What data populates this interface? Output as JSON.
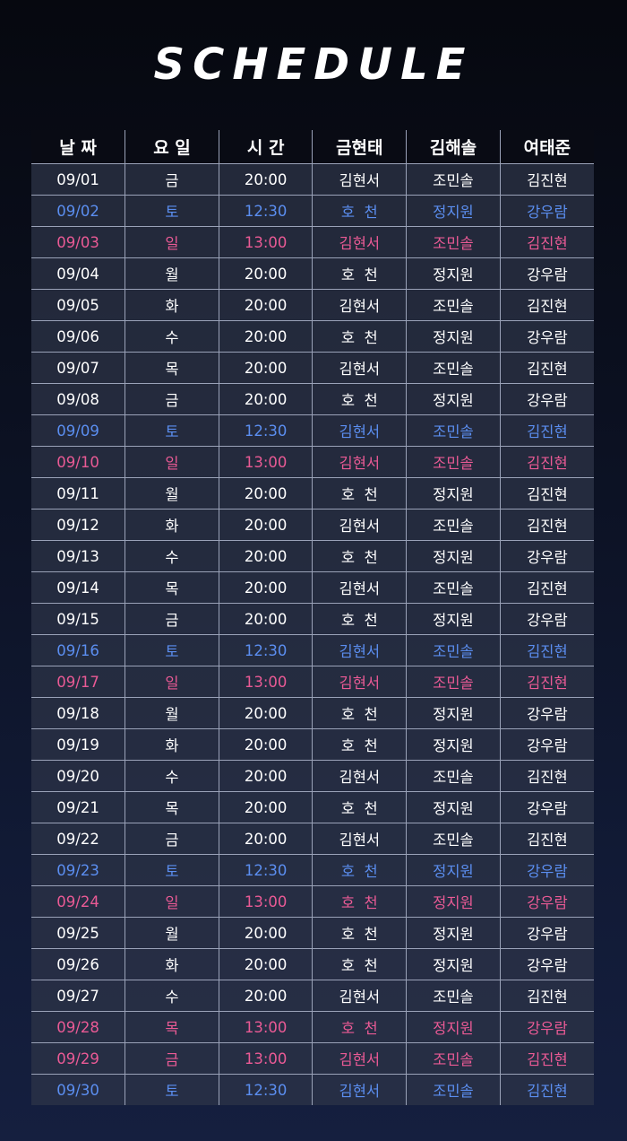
{
  "title": "SCHEDULE",
  "colors": {
    "weekday": "#ffffff",
    "saturday": "#5b8ef0",
    "sunday_holiday": "#ea5a95",
    "header_bg": "#090b14"
  },
  "table": {
    "headers": [
      "날 짜",
      "요 일",
      "시 간",
      "금현태",
      "김해솔",
      "여태준"
    ],
    "rows": [
      {
        "type": "weekday",
        "cells": [
          "09/01",
          "금",
          "20:00",
          "김현서",
          "조민솔",
          "김진현"
        ]
      },
      {
        "type": "sat",
        "cells": [
          "09/02",
          "토",
          "12:30",
          "호  천",
          "정지원",
          "강우람"
        ]
      },
      {
        "type": "sun",
        "cells": [
          "09/03",
          "일",
          "13:00",
          "김현서",
          "조민솔",
          "김진현"
        ]
      },
      {
        "type": "weekday",
        "cells": [
          "09/04",
          "월",
          "20:00",
          "호  천",
          "정지원",
          "강우람"
        ]
      },
      {
        "type": "weekday",
        "cells": [
          "09/05",
          "화",
          "20:00",
          "김현서",
          "조민솔",
          "김진현"
        ]
      },
      {
        "type": "weekday",
        "cells": [
          "09/06",
          "수",
          "20:00",
          "호  천",
          "정지원",
          "강우람"
        ]
      },
      {
        "type": "weekday",
        "cells": [
          "09/07",
          "목",
          "20:00",
          "김현서",
          "조민솔",
          "김진현"
        ]
      },
      {
        "type": "weekday",
        "cells": [
          "09/08",
          "금",
          "20:00",
          "호  천",
          "정지원",
          "강우람"
        ]
      },
      {
        "type": "sat",
        "cells": [
          "09/09",
          "토",
          "12:30",
          "김현서",
          "조민솔",
          "김진현"
        ]
      },
      {
        "type": "sun",
        "cells": [
          "09/10",
          "일",
          "13:00",
          "김현서",
          "조민솔",
          "김진현"
        ]
      },
      {
        "type": "weekday",
        "cells": [
          "09/11",
          "월",
          "20:00",
          "호  천",
          "정지원",
          "김진현"
        ]
      },
      {
        "type": "weekday",
        "cells": [
          "09/12",
          "화",
          "20:00",
          "김현서",
          "조민솔",
          "김진현"
        ]
      },
      {
        "type": "weekday",
        "cells": [
          "09/13",
          "수",
          "20:00",
          "호  천",
          "정지원",
          "강우람"
        ]
      },
      {
        "type": "weekday",
        "cells": [
          "09/14",
          "목",
          "20:00",
          "김현서",
          "조민솔",
          "김진현"
        ]
      },
      {
        "type": "weekday",
        "cells": [
          "09/15",
          "금",
          "20:00",
          "호  천",
          "정지원",
          "강우람"
        ]
      },
      {
        "type": "sat",
        "cells": [
          "09/16",
          "토",
          "12:30",
          "김현서",
          "조민솔",
          "김진현"
        ]
      },
      {
        "type": "sun",
        "cells": [
          "09/17",
          "일",
          "13:00",
          "김현서",
          "조민솔",
          "김진현"
        ]
      },
      {
        "type": "weekday",
        "cells": [
          "09/18",
          "월",
          "20:00",
          "호  천",
          "정지원",
          "강우람"
        ]
      },
      {
        "type": "weekday",
        "cells": [
          "09/19",
          "화",
          "20:00",
          "호  천",
          "정지원",
          "강우람"
        ]
      },
      {
        "type": "weekday",
        "cells": [
          "09/20",
          "수",
          "20:00",
          "김현서",
          "조민솔",
          "김진현"
        ]
      },
      {
        "type": "weekday",
        "cells": [
          "09/21",
          "목",
          "20:00",
          "호  천",
          "정지원",
          "강우람"
        ]
      },
      {
        "type": "weekday",
        "cells": [
          "09/22",
          "금",
          "20:00",
          "김현서",
          "조민솔",
          "김진현"
        ]
      },
      {
        "type": "sat",
        "cells": [
          "09/23",
          "토",
          "12:30",
          "호  천",
          "정지원",
          "강우람"
        ]
      },
      {
        "type": "sun",
        "cells": [
          "09/24",
          "일",
          "13:00",
          "호  천",
          "정지원",
          "강우람"
        ]
      },
      {
        "type": "weekday",
        "cells": [
          "09/25",
          "월",
          "20:00",
          "호  천",
          "정지원",
          "강우람"
        ]
      },
      {
        "type": "weekday",
        "cells": [
          "09/26",
          "화",
          "20:00",
          "호  천",
          "정지원",
          "강우람"
        ]
      },
      {
        "type": "weekday",
        "cells": [
          "09/27",
          "수",
          "20:00",
          "김현서",
          "조민솔",
          "김진현"
        ]
      },
      {
        "type": "sun",
        "cells": [
          "09/28",
          "목",
          "13:00",
          "호  천",
          "정지원",
          "강우람"
        ]
      },
      {
        "type": "sun",
        "cells": [
          "09/29",
          "금",
          "13:00",
          "김현서",
          "조민솔",
          "김진현"
        ]
      },
      {
        "type": "sat",
        "cells": [
          "09/30",
          "토",
          "12:30",
          "김현서",
          "조민솔",
          "김진현"
        ]
      }
    ]
  }
}
